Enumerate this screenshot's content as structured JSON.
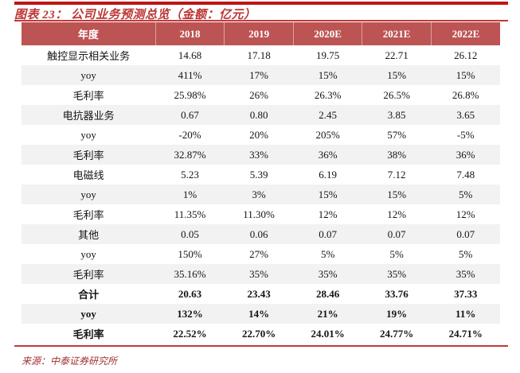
{
  "header": {
    "title": "图表 23： 公司业务预测总览（金额：亿元）"
  },
  "footer": {
    "source": "来源：中泰证券研究所"
  },
  "colors": {
    "accent_bar_red": "#c01414",
    "title_red": "#bd3434",
    "table_header_bg": "#bd5454",
    "table_header_text": "#ffffff",
    "alt_row_bg": "#f2f2f2",
    "rule_red": "#c23a3a",
    "source_red": "#a33030"
  },
  "chart_data": {
    "type": "table",
    "columns": [
      "年度",
      "2018",
      "2019",
      "2020E",
      "2021E",
      "2022E"
    ],
    "rows": [
      {
        "label": "触控显示相关业务",
        "values": [
          "14.68",
          "17.18",
          "19.75",
          "22.71",
          "26.12"
        ],
        "bold": false
      },
      {
        "label": "yoy",
        "values": [
          "411%",
          "17%",
          "15%",
          "15%",
          "15%"
        ],
        "bold": false
      },
      {
        "label": "毛利率",
        "values": [
          "25.98%",
          "26%",
          "26.3%",
          "26.5%",
          "26.8%"
        ],
        "bold": false
      },
      {
        "label": "电抗器业务",
        "values": [
          "0.67",
          "0.80",
          "2.45",
          "3.85",
          "3.65"
        ],
        "bold": false
      },
      {
        "label": "yoy",
        "values": [
          "-20%",
          "20%",
          "205%",
          "57%",
          "-5%"
        ],
        "bold": false
      },
      {
        "label": "毛利率",
        "values": [
          "32.87%",
          "33%",
          "36%",
          "38%",
          "36%"
        ],
        "bold": false
      },
      {
        "label": "电磁线",
        "values": [
          "5.23",
          "5.39",
          "6.19",
          "7.12",
          "7.48"
        ],
        "bold": false
      },
      {
        "label": "yoy",
        "values": [
          "1%",
          "3%",
          "15%",
          "15%",
          "5%"
        ],
        "bold": false
      },
      {
        "label": "毛利率",
        "values": [
          "11.35%",
          "11.30%",
          "12%",
          "12%",
          "12%"
        ],
        "bold": false
      },
      {
        "label": "其他",
        "values": [
          "0.05",
          "0.06",
          "0.07",
          "0.07",
          "0.07"
        ],
        "bold": false
      },
      {
        "label": "yoy",
        "values": [
          "150%",
          "27%",
          "5%",
          "5%",
          "5%"
        ],
        "bold": false
      },
      {
        "label": "毛利率",
        "values": [
          "35.16%",
          "35%",
          "35%",
          "35%",
          "35%"
        ],
        "bold": false
      },
      {
        "label": "合计",
        "values": [
          "20.63",
          "23.43",
          "28.46",
          "33.76",
          "37.33"
        ],
        "bold": true
      },
      {
        "label": "yoy",
        "values": [
          "132%",
          "14%",
          "21%",
          "19%",
          "11%"
        ],
        "bold": true
      },
      {
        "label": "毛利率",
        "values": [
          "22.52%",
          "22.70%",
          "24.01%",
          "24.77%",
          "24.71%"
        ],
        "bold": true
      }
    ]
  }
}
